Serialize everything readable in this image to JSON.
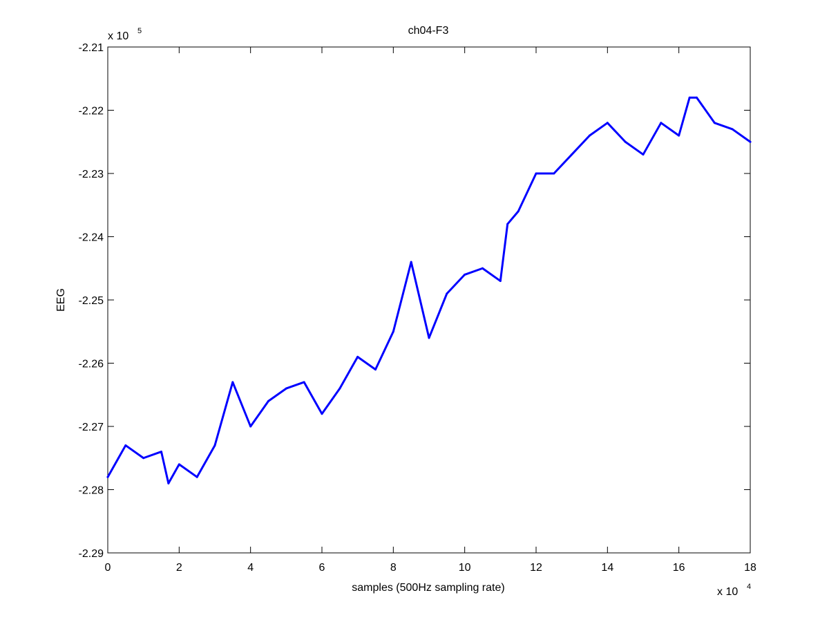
{
  "chart_data": {
    "type": "line",
    "title": "ch04-F3",
    "xlabel": "samples (500Hz sampling rate)",
    "ylabel": "EEG",
    "x_exponent_label": {
      "base": "x 10",
      "exp": "4"
    },
    "y_exponent_label": {
      "base": "x 10",
      "exp": "5"
    },
    "xlim": [
      0,
      18
    ],
    "ylim": [
      -2.29,
      -2.21
    ],
    "x_ticks": [
      0,
      2,
      4,
      6,
      8,
      10,
      12,
      14,
      16,
      18
    ],
    "x_tick_labels": [
      "0",
      "2",
      "4",
      "6",
      "8",
      "10",
      "12",
      "14",
      "16",
      "18"
    ],
    "y_ticks": [
      -2.29,
      -2.28,
      -2.27,
      -2.26,
      -2.25,
      -2.24,
      -2.23,
      -2.22,
      -2.21
    ],
    "y_tick_labels": [
      "-2.29",
      "-2.28",
      "-2.27",
      "-2.26",
      "-2.25",
      "-2.24",
      "-2.23",
      "-2.22",
      "-2.21"
    ],
    "grid": false,
    "legend": "none",
    "series": [
      {
        "color": "#0000ff",
        "x": [
          0,
          0.3,
          0.5,
          1.0,
          1.5,
          1.7,
          2.0,
          2.5,
          3.0,
          3.5,
          4.0,
          4.5,
          5.0,
          5.5,
          6.0,
          6.5,
          7.0,
          7.5,
          8.0,
          8.5,
          9.0,
          9.5,
          10.0,
          10.5,
          11.0,
          11.2,
          11.5,
          12.0,
          12.5,
          13.0,
          13.5,
          14.0,
          14.5,
          15.0,
          15.5,
          16.0,
          16.3,
          16.5,
          17.0,
          17.5,
          18.0
        ],
        "y": [
          -2.278,
          -2.275,
          -2.273,
          -2.275,
          -2.274,
          -2.279,
          -2.276,
          -2.278,
          -2.273,
          -2.263,
          -2.27,
          -2.266,
          -2.264,
          -2.263,
          -2.268,
          -2.264,
          -2.259,
          -2.261,
          -2.255,
          -2.244,
          -2.256,
          -2.249,
          -2.246,
          -2.245,
          -2.247,
          -2.238,
          -2.236,
          -2.23,
          -2.23,
          -2.227,
          -2.224,
          -2.222,
          -2.225,
          -2.227,
          -2.222,
          -2.224,
          -2.218,
          -2.218,
          -2.222,
          -2.223,
          -2.225
        ]
      }
    ]
  }
}
